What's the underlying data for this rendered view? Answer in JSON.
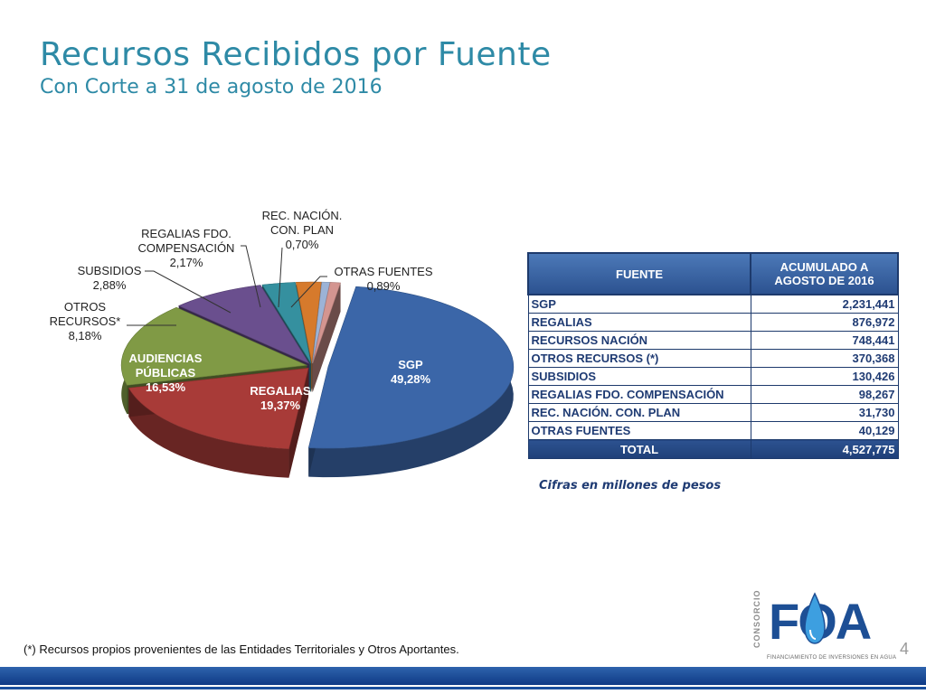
{
  "header": {
    "title": "Recursos Recibidos por Fuente",
    "subtitle": "Con Corte a 31 de agosto de 2016"
  },
  "chart_data": {
    "type": "pie",
    "title": "",
    "slices": [
      {
        "label": "SGP",
        "value": 49.28,
        "value_text": "49,28%",
        "color": "#3b66a8"
      },
      {
        "label": "REGALIAS",
        "value": 19.37,
        "value_text": "19,37%",
        "color": "#a83b38"
      },
      {
        "label": "AUDIENCIAS PÚBLICAS",
        "value": 16.53,
        "value_text": "16,53%",
        "color": "#809a45"
      },
      {
        "label": "OTROS RECURSOS*",
        "value": 8.18,
        "value_text": "8,18%",
        "color": "#6a4f8e"
      },
      {
        "label": "SUBSIDIOS",
        "value": 2.88,
        "value_text": "2,88%",
        "color": "#35909f"
      },
      {
        "label": "REGALIAS FDO. COMPENSACIÓN",
        "value": 2.17,
        "value_text": "2,17%",
        "color": "#d67a2c"
      },
      {
        "label": "REC. NACIÓN. CON. PLAN",
        "value": 0.7,
        "value_text": "0,70%",
        "color": "#9cb3d6"
      },
      {
        "label": "OTRAS FUENTES",
        "value": 0.89,
        "value_text": "0,89%",
        "color": "#d49590"
      }
    ],
    "legend": "none"
  },
  "table": {
    "headers": [
      "FUENTE",
      "ACUMULADO A AGOSTO DE 2016"
    ],
    "rows": [
      {
        "fuente": "SGP",
        "valor": "2,231,441"
      },
      {
        "fuente": "REGALIAS",
        "valor": "876,972"
      },
      {
        "fuente": "RECURSOS NACIÓN",
        "valor": "748,441"
      },
      {
        "fuente": "OTROS RECURSOS (*)",
        "valor": "370,368"
      },
      {
        "fuente": "SUBSIDIOS",
        "valor": "130,426"
      },
      {
        "fuente": "REGALIAS FDO. COMPENSACIÓN",
        "valor": "98,267"
      },
      {
        "fuente": "REC. NACIÓN.  CON. PLAN",
        "valor": "31,730"
      },
      {
        "fuente": "OTRAS FUENTES",
        "valor": "40,129"
      }
    ],
    "total_label": "TOTAL",
    "total_value": "4,527,775"
  },
  "note": "Cifras en millones de pesos",
  "footnote": "(*) Recursos propios provenientes de  las Entidades Territoriales y Otros Aportantes.",
  "page_number": "4",
  "logo": {
    "text": "FOA",
    "side_text": "CONSORCIO",
    "tagline": "FINANCIAMIENTO DE INVERSIONES EN AGUA"
  },
  "colors": {
    "accent": "#2e8aa6",
    "brand": "#1d4f95"
  }
}
